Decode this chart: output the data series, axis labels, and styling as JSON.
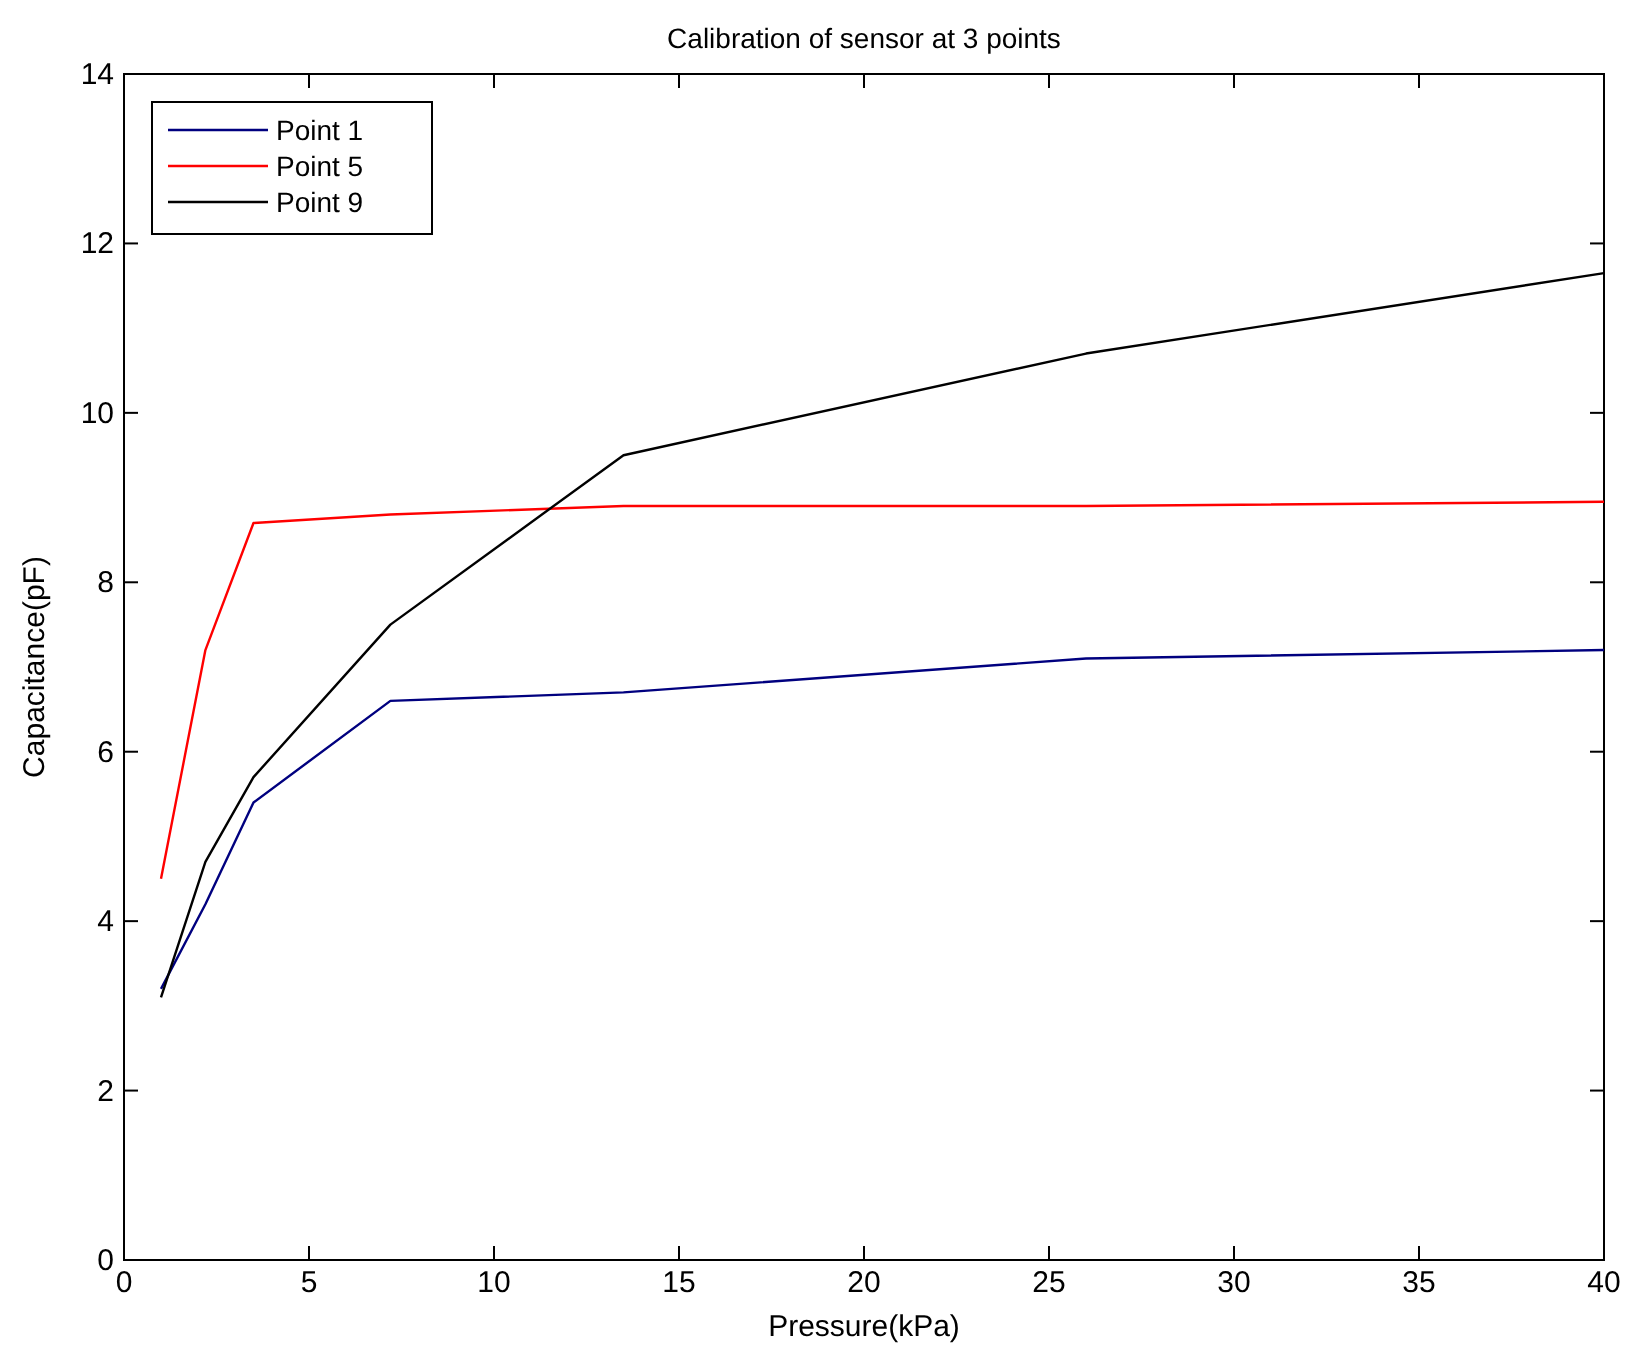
{
  "chart_data": {
    "type": "line",
    "title": "Calibration of sensor at 3 points",
    "xlabel": "Pressure(kPa)",
    "ylabel": "Capacitance(pF)",
    "x": [
      1,
      2.2,
      3.5,
      7.2,
      13.5,
      26,
      40
    ],
    "series": [
      {
        "name": "Point 1",
        "color": "#00007f",
        "values": [
          3.2,
          4.2,
          5.4,
          6.6,
          6.7,
          7.1,
          7.2
        ]
      },
      {
        "name": "Point 5",
        "color": "#ff0000",
        "values": [
          4.5,
          7.2,
          8.7,
          8.8,
          8.9,
          8.9,
          8.95
        ]
      },
      {
        "name": "Point 9",
        "color": "#000000",
        "values": [
          3.1,
          4.7,
          5.7,
          7.5,
          9.5,
          10.7,
          11.65
        ]
      }
    ],
    "xlim": [
      0,
      40
    ],
    "xticks": [
      0,
      5,
      10,
      15,
      20,
      25,
      30,
      35,
      40
    ],
    "ylim": [
      0,
      14
    ],
    "yticks": [
      0,
      2,
      4,
      6,
      8,
      10,
      12,
      14
    ],
    "legend": "top left",
    "grid": false,
    "marker": "none",
    "line_style": "solid"
  }
}
